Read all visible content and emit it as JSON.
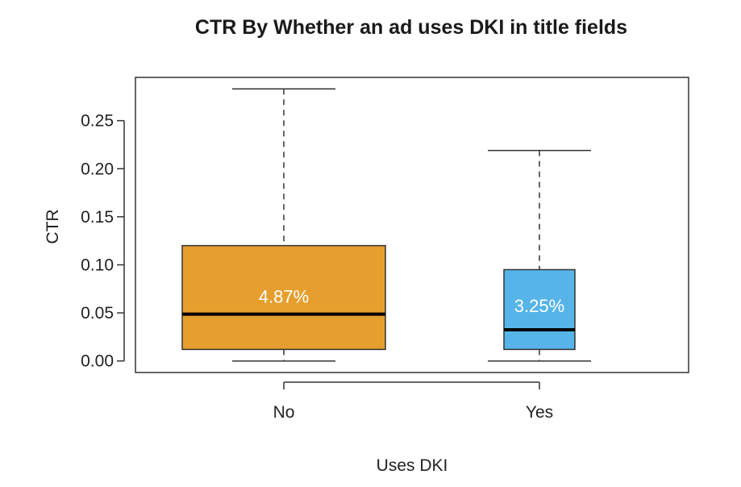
{
  "chart_data": {
    "type": "boxplot",
    "title": "CTR By Whether an ad uses DKI in title fields",
    "xlabel": "Uses DKI",
    "ylabel": "CTR",
    "ylim": [
      -0.012,
      0.295
    ],
    "yticks": [
      0.0,
      0.05,
      0.1,
      0.15,
      0.2,
      0.25
    ],
    "ytick_labels": [
      "0.00",
      "0.05",
      "0.10",
      "0.15",
      "0.20",
      "0.25"
    ],
    "grid": false,
    "legend": "none",
    "categories": [
      "No",
      "Yes"
    ],
    "boxes": [
      {
        "category": "No",
        "whisker_low": 0.0,
        "q1": 0.012,
        "median": 0.0487,
        "q3": 0.12,
        "whisker_high": 0.283,
        "color": "#E69F2E",
        "label": "4.87%"
      },
      {
        "category": "Yes",
        "whisker_low": 0.0,
        "q1": 0.012,
        "median": 0.0325,
        "q3": 0.095,
        "whisker_high": 0.219,
        "color": "#56B4E9",
        "label": "3.25%"
      }
    ]
  }
}
